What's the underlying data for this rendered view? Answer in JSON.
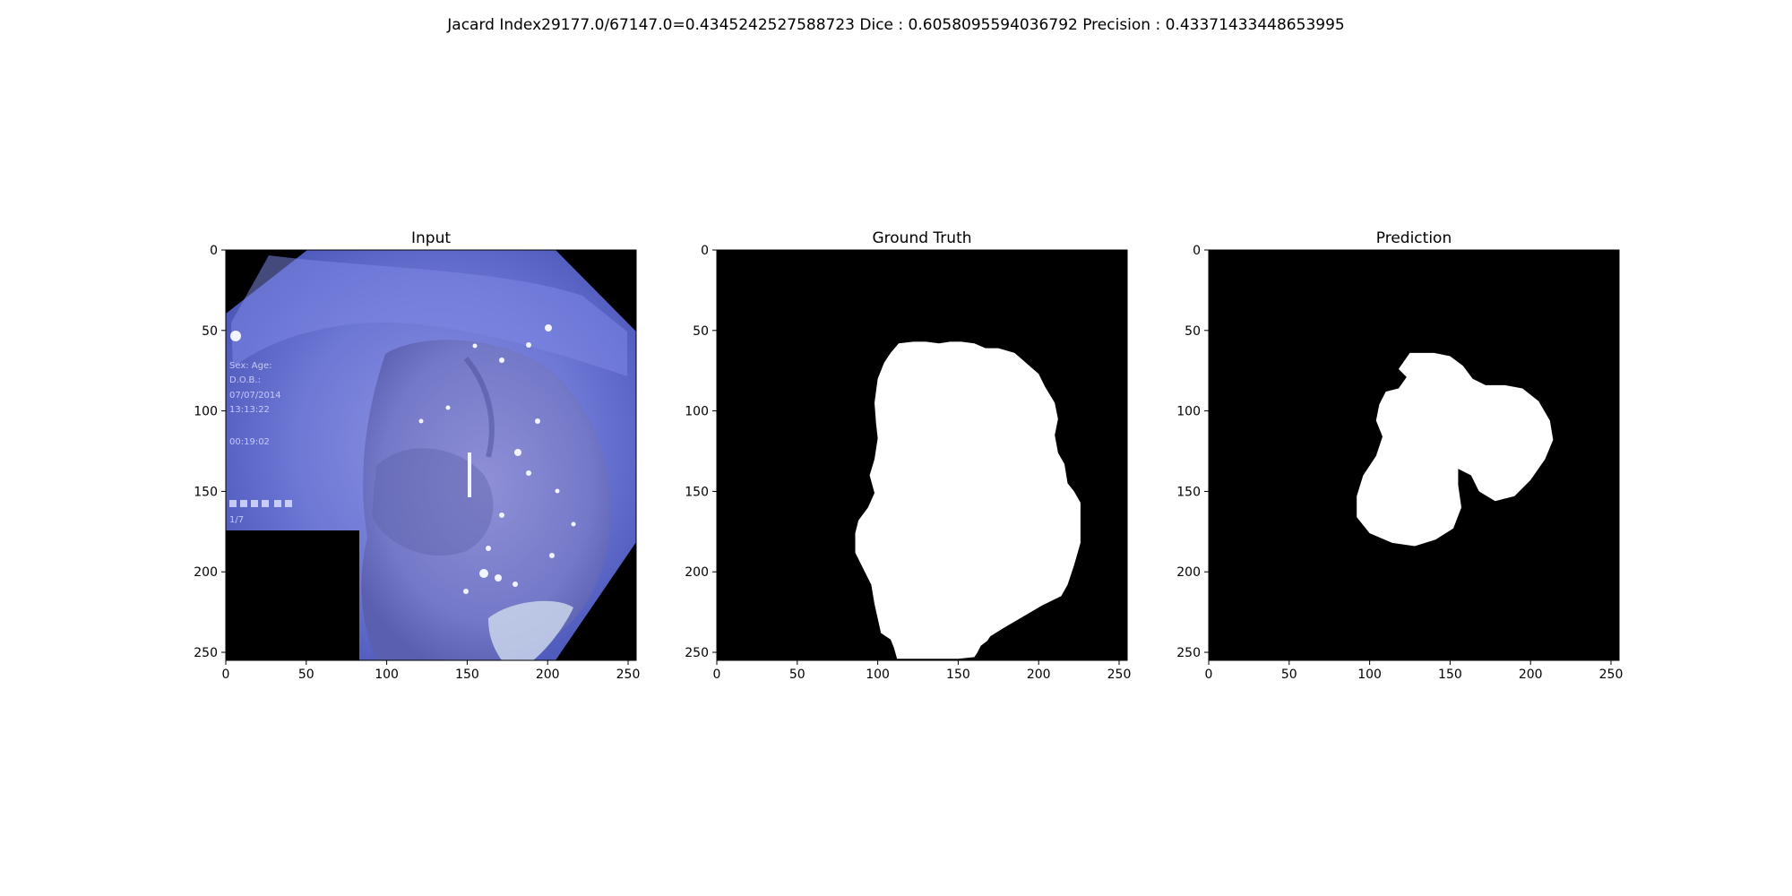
{
  "figure": {
    "suptitle": "Jacard Index29177.0/67147.0=0.4345242527588723 Dice : 0.6058095594036792 Precision : 0.43371433448653995"
  },
  "chart_data": [
    {
      "type": "image",
      "title": "Input",
      "xlim": [
        0,
        255
      ],
      "ylim": [
        255,
        0
      ],
      "xticks": [
        0,
        50,
        100,
        150,
        200,
        250
      ],
      "yticks": [
        0,
        50,
        100,
        150,
        200,
        250
      ],
      "colormap": "blue-tinted endoscopy image",
      "overlay_text": [
        "Sex: Age:",
        "D.O.B.:",
        "07/07/2014",
        "13:13:22",
        "00:19:02",
        "1/7"
      ]
    },
    {
      "type": "image",
      "title": "Ground Truth",
      "xlim": [
        0,
        255
      ],
      "ylim": [
        255,
        0
      ],
      "xticks": [
        0,
        50,
        100,
        150,
        200,
        250
      ],
      "yticks": [
        0,
        50,
        100,
        150,
        200,
        250
      ],
      "colormap": "binary mask (white on black)",
      "mask_outline": [
        [
          113,
          58
        ],
        [
          122,
          57
        ],
        [
          130,
          57
        ],
        [
          138,
          58
        ],
        [
          145,
          57
        ],
        [
          152,
          57
        ],
        [
          160,
          58
        ],
        [
          167,
          61
        ],
        [
          175,
          61
        ],
        [
          185,
          64
        ],
        [
          192,
          70
        ],
        [
          200,
          77
        ],
        [
          204,
          85
        ],
        [
          210,
          95
        ],
        [
          212,
          105
        ],
        [
          210,
          115
        ],
        [
          212,
          126
        ],
        [
          216,
          133
        ],
        [
          218,
          145
        ],
        [
          222,
          150
        ],
        [
          226,
          157
        ],
        [
          226,
          169
        ],
        [
          226,
          182
        ],
        [
          222,
          196
        ],
        [
          218,
          208
        ],
        [
          214,
          215
        ],
        [
          202,
          221
        ],
        [
          190,
          228
        ],
        [
          178,
          235
        ],
        [
          170,
          240
        ],
        [
          168,
          243
        ],
        [
          164,
          246
        ],
        [
          162,
          250
        ],
        [
          160,
          253
        ],
        [
          150,
          254
        ],
        [
          130,
          254
        ],
        [
          112,
          254
        ],
        [
          110,
          247
        ],
        [
          108,
          242
        ],
        [
          102,
          238
        ],
        [
          100,
          229
        ],
        [
          98,
          220
        ],
        [
          96,
          208
        ],
        [
          90,
          196
        ],
        [
          86,
          188
        ],
        [
          86,
          176
        ],
        [
          88,
          168
        ],
        [
          94,
          160
        ],
        [
          98,
          151
        ],
        [
          95,
          140
        ],
        [
          98,
          130
        ],
        [
          100,
          117
        ],
        [
          99,
          108
        ],
        [
          98,
          95
        ],
        [
          100,
          80
        ],
        [
          104,
          70
        ],
        [
          108,
          64
        ]
      ]
    },
    {
      "type": "image",
      "title": "Prediction",
      "xlim": [
        0,
        255
      ],
      "ylim": [
        255,
        0
      ],
      "xticks": [
        0,
        50,
        100,
        150,
        200,
        250
      ],
      "yticks": [
        0,
        50,
        100,
        150,
        200,
        250
      ],
      "colormap": "binary mask (white on black)",
      "mask_outline": [
        [
          125,
          64
        ],
        [
          140,
          64
        ],
        [
          150,
          66
        ],
        [
          158,
          72
        ],
        [
          164,
          80
        ],
        [
          172,
          84
        ],
        [
          184,
          84
        ],
        [
          195,
          86
        ],
        [
          205,
          94
        ],
        [
          212,
          106
        ],
        [
          214,
          118
        ],
        [
          209,
          130
        ],
        [
          200,
          143
        ],
        [
          190,
          153
        ],
        [
          178,
          156
        ],
        [
          168,
          150
        ],
        [
          163,
          140
        ],
        [
          155,
          136
        ],
        [
          155,
          146
        ],
        [
          157,
          160
        ],
        [
          152,
          173
        ],
        [
          141,
          180
        ],
        [
          128,
          184
        ],
        [
          114,
          182
        ],
        [
          100,
          176
        ],
        [
          92,
          166
        ],
        [
          92,
          153
        ],
        [
          96,
          140
        ],
        [
          104,
          128
        ],
        [
          108,
          116
        ],
        [
          104,
          106
        ],
        [
          106,
          96
        ],
        [
          110,
          88
        ],
        [
          118,
          86
        ],
        [
          123,
          79
        ],
        [
          118,
          74
        ]
      ]
    }
  ]
}
